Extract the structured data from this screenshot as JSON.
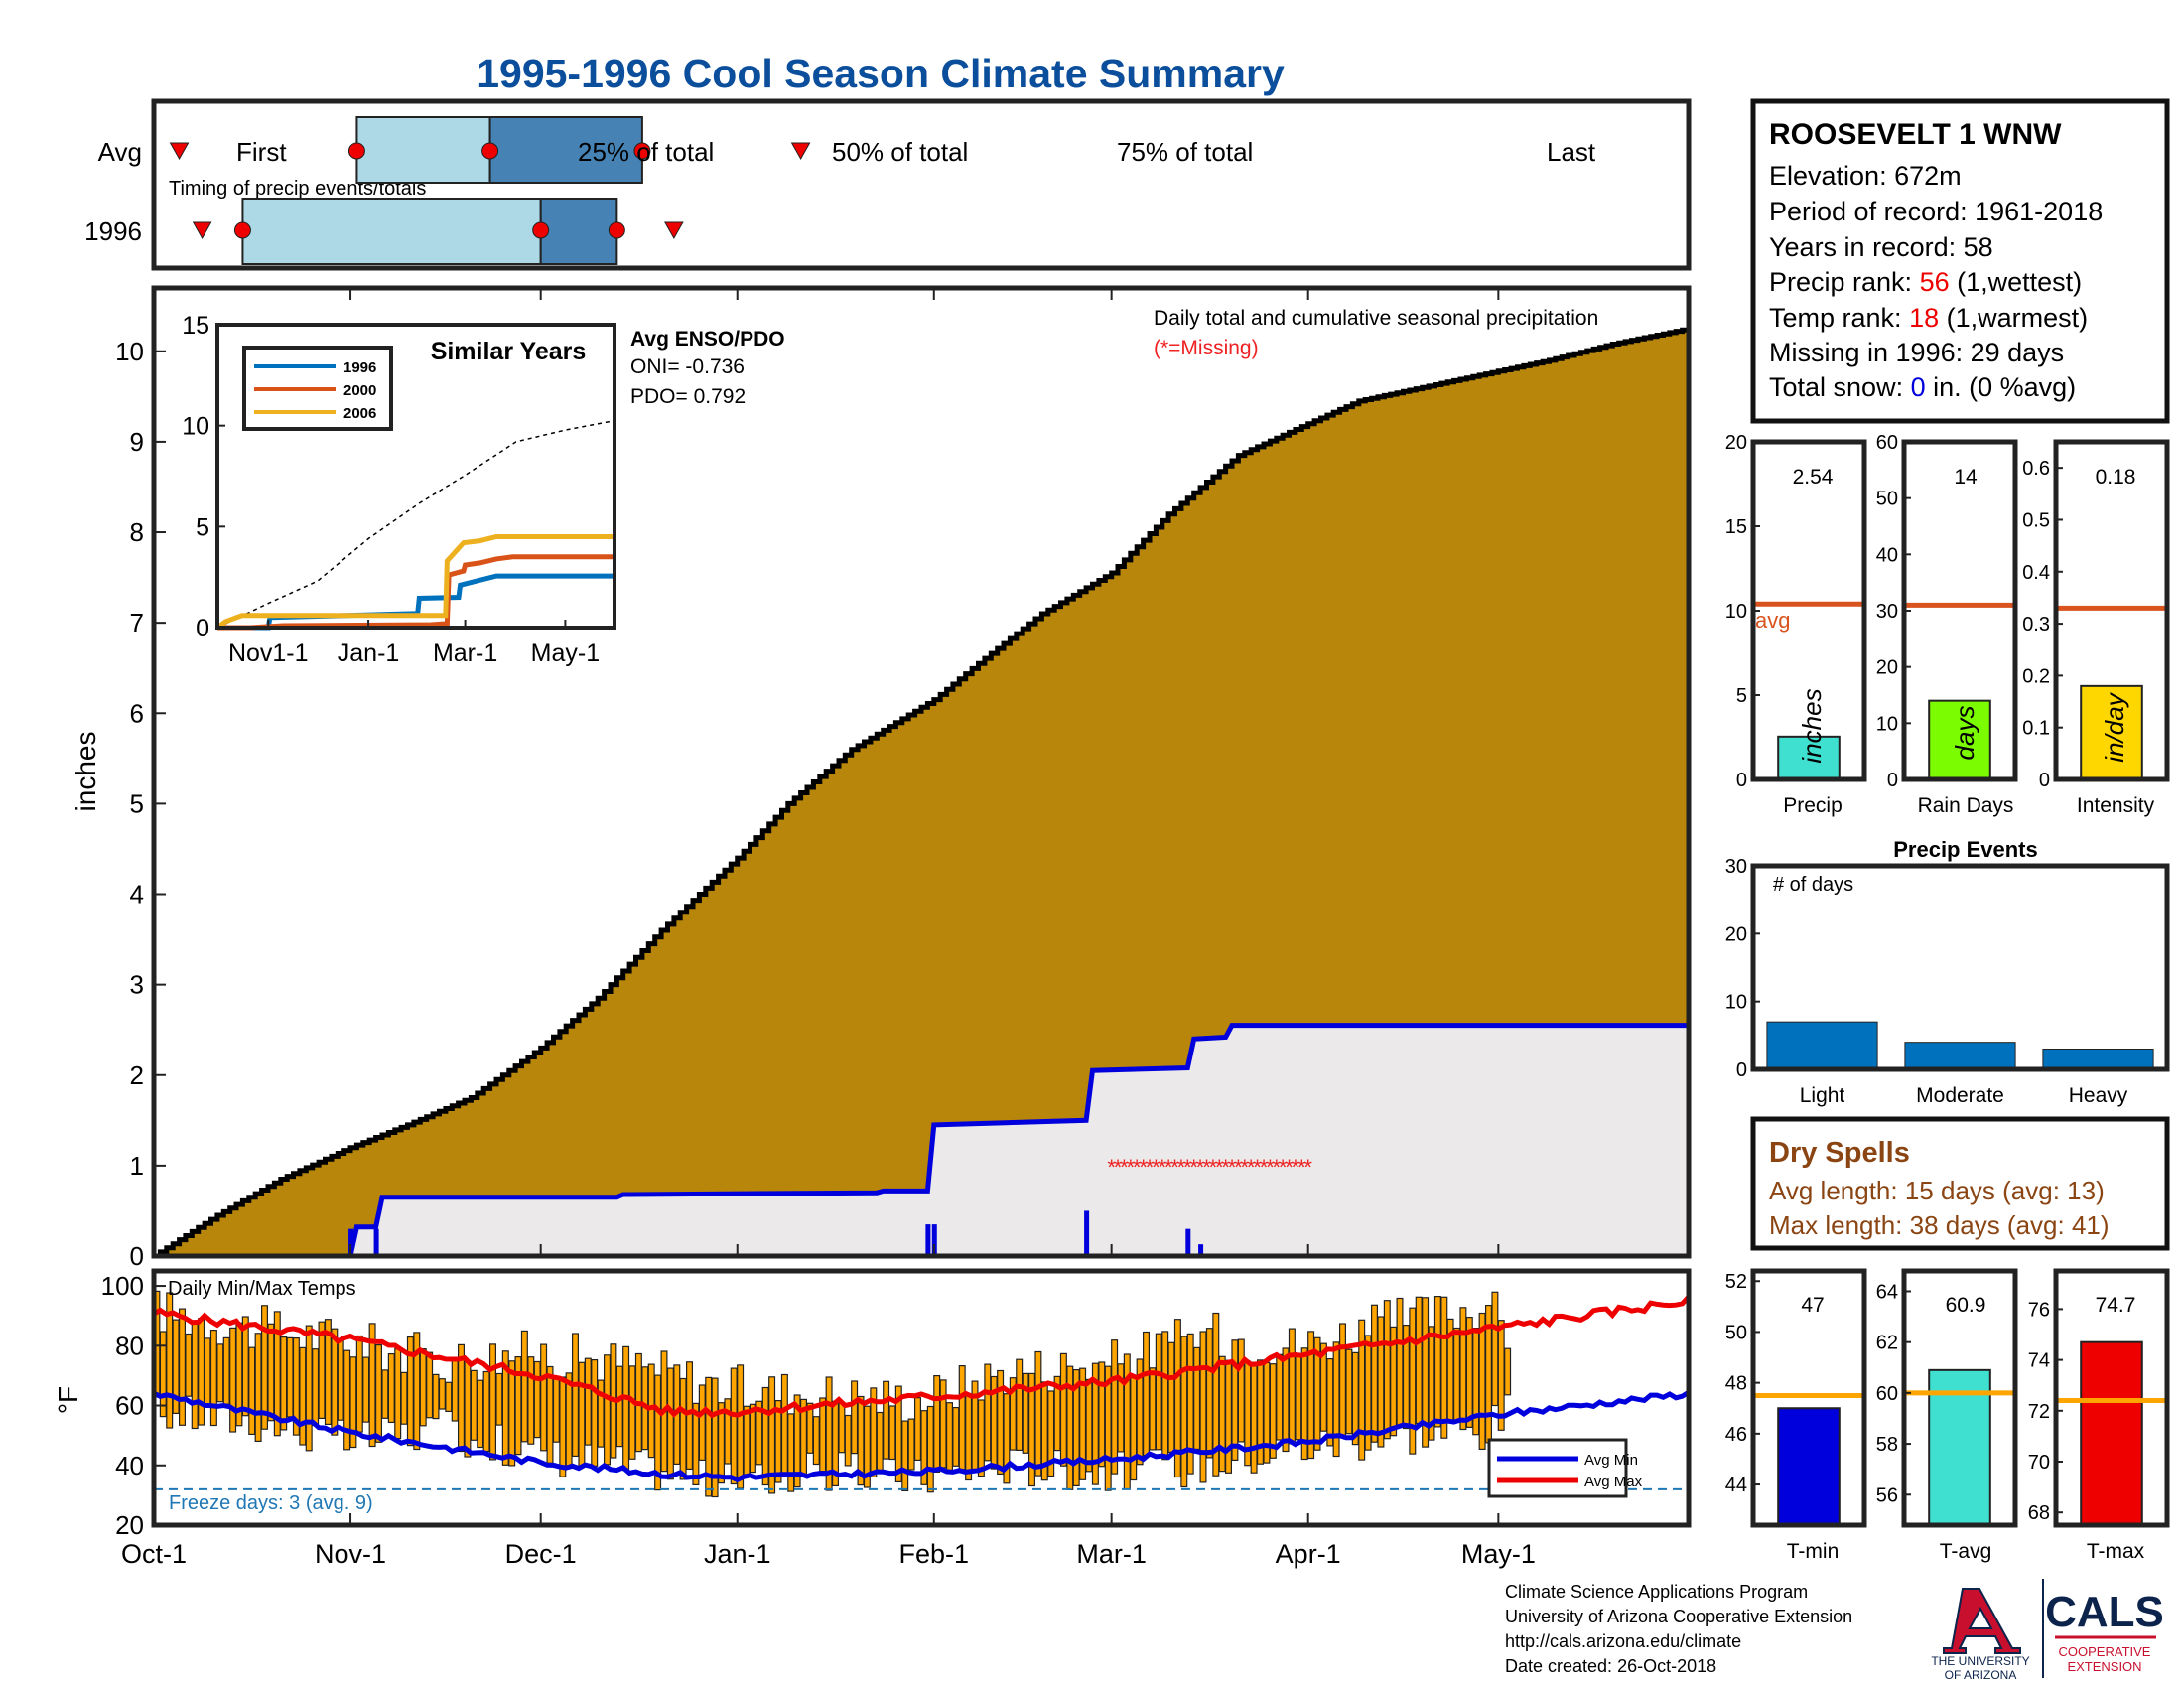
{
  "title": "1995-1996 Cool Season Climate Summary",
  "colors": {
    "title": "#0b4e9b",
    "cum_avg": "#b8860b",
    "blue": "#0000dd",
    "red": "#ee0000",
    "light_bar": "#add8e6",
    "dark_bar": "#4682b4",
    "orange": "#ffa500",
    "missing": "#ee2222",
    "precip_fill": "#40e0d0",
    "raindays_fill": "#7cfc00",
    "intensity_fill": "#ffd700",
    "avg_line": "#d9531e",
    "events_fill": "#0072bd",
    "dry_text": "#8b4513",
    "tavg_fill": "#40e0d0",
    "temp_avg_line": "#ffa500",
    "ua_red": "#c8102e",
    "ua_navy": "#0c234b"
  },
  "timing": {
    "row_labels": [
      "Avg",
      "1996"
    ],
    "caption": "Timing of precip events/totals",
    "avg_labels": [
      "First",
      "25% of total",
      "50% of total",
      "75% of total",
      "Last"
    ],
    "avg": {
      "first": 4,
      "p25": 32,
      "p50": 53,
      "p75": 77,
      "last": 102
    },
    "yr": {
      "first": 12,
      "p25": 14,
      "p50": 61,
      "p75": 73,
      "last": 82
    }
  },
  "station": {
    "name": "ROOSEVELT 1 WNW",
    "elevation_label": "Elevation: 672m",
    "period_label": "Period of record: 1961-2018",
    "years_label": "Years in record: 58",
    "precip_rank_prefix": "Precip rank: ",
    "precip_rank": "56",
    "precip_rank_suffix": " (1,wettest)",
    "temp_rank_prefix": "Temp rank: ",
    "temp_rank": "18",
    "temp_rank_suffix": " (1,warmest)",
    "missing_label": "Missing in 1996: 29 days",
    "snow_prefix": "Total snow: ",
    "snow_value": "0",
    "snow_suffix": " in. (0 %avg)"
  },
  "main": {
    "ylabel": "inches",
    "caption": "Daily total and cumulative seasonal precipitation",
    "missing_note": "(*=Missing)",
    "enso_title": "Avg ENSO/PDO",
    "oni_label": "ONI= -0.736",
    "pdo_label": "PDO= 0.792",
    "x_ticks": [
      "Oct-1",
      "Nov-1",
      "Dec-1",
      "Jan-1",
      "Feb-1",
      "Mar-1",
      "Apr-1",
      "May-1"
    ],
    "missing_char": "*"
  },
  "inset": {
    "title": "Similar Years",
    "legend": [
      "1996",
      "2000",
      "2006"
    ],
    "series_colors": [
      "#0072bd",
      "#d95319",
      "#edb120"
    ],
    "x_ticks": [
      "Nov1-1",
      "Jan-1",
      "Mar-1",
      "May-1"
    ]
  },
  "temps": {
    "ylabel": "°F",
    "caption": "Daily Min/Max Temps",
    "freeze_label": "Freeze days: 3 (avg. 9)",
    "legend": [
      "Avg Min",
      "Avg Max"
    ]
  },
  "stats": {
    "precip": {
      "value_label": "2.54",
      "unit": "inches",
      "xlabel": "Precip",
      "avg_label": "avg"
    },
    "raindays": {
      "value_label": "14",
      "unit": "days",
      "xlabel": "Rain Days"
    },
    "intensity": {
      "value_label": "0.18",
      "unit": "in/day",
      "xlabel": "Intensity"
    }
  },
  "events": {
    "title": "Precip Events",
    "ylabel_inside": "# of days"
  },
  "dry": {
    "title": "Dry Spells",
    "avg_label": "Avg length: 15 days (avg: 13)",
    "max_label": "Max length: 38 days (avg: 41)"
  },
  "tstats": {
    "tmin": {
      "value_label": "47",
      "xlabel": "T-min"
    },
    "tavg": {
      "value_label": "60.9",
      "xlabel": "T-avg"
    },
    "tmax": {
      "value_label": "74.7",
      "xlabel": "T-max"
    }
  },
  "footer": {
    "lines": [
      "Climate Science Applications Program",
      "University of Arizona Cooperative Extension",
      "http://cals.arizona.edu/climate",
      " Date created: 26-Oct-2018"
    ],
    "ua_line1": "THE UNIVERSITY",
    "ua_line2": "OF ARIZONA",
    "cals": "CALS",
    "cals_sub1": "COOPERATIVE",
    "cals_sub2": "EXTENSION"
  },
  "chart_data": [
    {
      "type": "area",
      "name": "cumulative seasonal precipitation",
      "xlabel": "",
      "ylabel": "inches",
      "xlim_days": [
        0,
        242
      ],
      "ylim": [
        0,
        10.7
      ],
      "yticks": [
        0,
        1,
        2,
        3,
        4,
        5,
        6,
        7,
        8,
        9,
        10
      ],
      "avg_cumulative": {
        "day": [
          0,
          10,
          20,
          31,
          40,
          50,
          61,
          70,
          80,
          92,
          100,
          110,
          123,
          130,
          140,
          151,
          160,
          171,
          182,
          190,
          200,
          212,
          220,
          230,
          242
        ],
        "value": [
          0,
          0.45,
          0.85,
          1.2,
          1.45,
          1.75,
          2.3,
          2.85,
          3.6,
          4.4,
          5.0,
          5.6,
          6.15,
          6.55,
          7.1,
          7.55,
          8.2,
          8.85,
          9.2,
          9.45,
          9.6,
          9.78,
          9.9,
          10.08,
          10.25
        ]
      },
      "cumulative_1996": {
        "day": [
          0,
          31,
          32,
          35,
          36,
          73,
          74,
          114,
          115,
          122,
          123,
          147,
          148,
          163,
          164,
          169,
          170,
          242
        ],
        "value": [
          0,
          0,
          0.32,
          0.32,
          0.65,
          0.65,
          0.68,
          0.7,
          0.72,
          0.72,
          1.45,
          1.5,
          2.05,
          2.08,
          2.4,
          2.42,
          2.55,
          2.55
        ]
      },
      "daily_1996": {
        "day": [
          31,
          35,
          122,
          123,
          147,
          163,
          165
        ],
        "value": [
          0.3,
          0.3,
          0.35,
          0.35,
          0.5,
          0.3,
          0.13
        ]
      },
      "missing_days": {
        "start": 151,
        "end": 182,
        "y": 1.0
      }
    },
    {
      "type": "line",
      "name": "Similar Years",
      "x_ticks": [
        "Nov1-1",
        "Jan-1",
        "Mar-1",
        "May-1"
      ],
      "xlim_days": [
        0,
        242
      ],
      "ylim": [
        0,
        15
      ],
      "yticks": [
        0,
        5,
        10,
        15
      ],
      "avg": {
        "day": [
          0,
          31,
          61,
          92,
          123,
          151,
          182,
          212,
          242
        ],
        "value": [
          0,
          1.2,
          2.3,
          4.4,
          6.15,
          7.55,
          9.2,
          9.78,
          10.25
        ]
      },
      "series": [
        {
          "name": "1996",
          "day": [
            0,
            31,
            32,
            122,
            123,
            147,
            148,
            170,
            242
          ],
          "value": [
            0,
            0,
            0.5,
            0.7,
            1.45,
            1.5,
            2.1,
            2.55,
            2.55
          ]
        },
        {
          "name": "2000",
          "day": [
            0,
            10,
            20,
            30,
            40,
            130,
            140,
            141,
            150,
            151,
            160,
            170,
            180,
            242
          ],
          "value": [
            0,
            0,
            0,
            0.05,
            0.1,
            0.15,
            0.2,
            2.6,
            2.8,
            3.1,
            3.2,
            3.4,
            3.5,
            3.5
          ]
        },
        {
          "name": "2006",
          "day": [
            0,
            5,
            15,
            40,
            80,
            139,
            140,
            150,
            160,
            170,
            180,
            242
          ],
          "value": [
            0,
            0.3,
            0.6,
            0.6,
            0.6,
            0.6,
            3.3,
            4.2,
            4.3,
            4.5,
            4.5,
            4.5
          ]
        }
      ]
    },
    {
      "type": "bar",
      "name": "Daily Min/Max Temps",
      "ylabel": "°F",
      "ylim": [
        20,
        105
      ],
      "yticks": [
        20,
        40,
        60,
        80,
        100
      ],
      "xlim_days": [
        0,
        242
      ],
      "x_ticks": [
        "Oct-1",
        "Nov-1",
        "Dec-1",
        "Jan-1",
        "Feb-1",
        "Mar-1",
        "Apr-1",
        "May-1"
      ],
      "freeze_threshold": 32,
      "daily_max": {
        "day": [
          0,
          15,
          30,
          45,
          60,
          75,
          90,
          105,
          120,
          135,
          150,
          165,
          180,
          195,
          210,
          213
        ],
        "value": [
          92,
          86,
          82,
          75,
          78,
          74,
          66,
          64,
          62,
          72,
          74,
          84,
          80,
          88,
          94,
          84
        ]
      },
      "daily_min": {
        "day": [
          0,
          15,
          30,
          45,
          60,
          75,
          90,
          105,
          120,
          135,
          150,
          165,
          180,
          195,
          210,
          213
        ],
        "value": [
          58,
          55,
          48,
          52,
          44,
          40,
          34,
          38,
          36,
          40,
          38,
          40,
          46,
          50,
          52,
          58
        ]
      },
      "avg_max": {
        "day": [
          0,
          31,
          61,
          81,
          92,
          123,
          151,
          182,
          212,
          242
        ],
        "value": [
          91,
          82,
          70,
          58,
          58,
          63,
          68,
          77,
          86,
          95
        ]
      },
      "avg_min": {
        "day": [
          0,
          31,
          61,
          81,
          92,
          123,
          151,
          182,
          212,
          242
        ],
        "value": [
          64,
          51,
          41,
          37,
          36,
          38,
          42,
          48,
          57,
          64
        ]
      }
    },
    {
      "type": "bar",
      "name": "Precip",
      "categories": [
        "Precip"
      ],
      "values": [
        2.54
      ],
      "avg": 10.4,
      "ylim": [
        0,
        20
      ],
      "yticks": [
        0,
        5,
        10,
        15,
        20
      ]
    },
    {
      "type": "bar",
      "name": "Rain Days",
      "categories": [
        "Rain Days"
      ],
      "values": [
        14
      ],
      "avg": 31,
      "ylim": [
        0,
        60
      ],
      "yticks": [
        0,
        10,
        20,
        30,
        40,
        50,
        60
      ]
    },
    {
      "type": "bar",
      "name": "Intensity",
      "categories": [
        "Intensity"
      ],
      "values": [
        0.18
      ],
      "avg": 0.33,
      "ylim": [
        0,
        0.65
      ],
      "yticks": [
        0,
        0.1,
        0.2,
        0.3,
        0.4,
        0.5,
        0.6
      ]
    },
    {
      "type": "bar",
      "name": "Precip Events",
      "categories": [
        "Light",
        "Moderate",
        "Heavy"
      ],
      "values": [
        7,
        4,
        3
      ],
      "ylim": [
        0,
        30
      ],
      "yticks": [
        0,
        10,
        20,
        30
      ]
    },
    {
      "type": "bar",
      "name": "T-min",
      "categories": [
        "T-min"
      ],
      "values": [
        47
      ],
      "avg": 47.5,
      "ylim": [
        42.4,
        52.4
      ],
      "yticks": [
        44,
        46,
        48,
        50,
        52
      ]
    },
    {
      "type": "bar",
      "name": "T-avg",
      "categories": [
        "T-avg"
      ],
      "values": [
        60.9
      ],
      "avg": 60,
      "ylim": [
        54.8,
        64.8
      ],
      "yticks": [
        56,
        58,
        60,
        62,
        64
      ]
    },
    {
      "type": "bar",
      "name": "T-max",
      "categories": [
        "T-max"
      ],
      "values": [
        74.7
      ],
      "avg": 72.4,
      "ylim": [
        67.5,
        77.5
      ],
      "yticks": [
        68,
        70,
        72,
        74,
        76
      ]
    }
  ]
}
